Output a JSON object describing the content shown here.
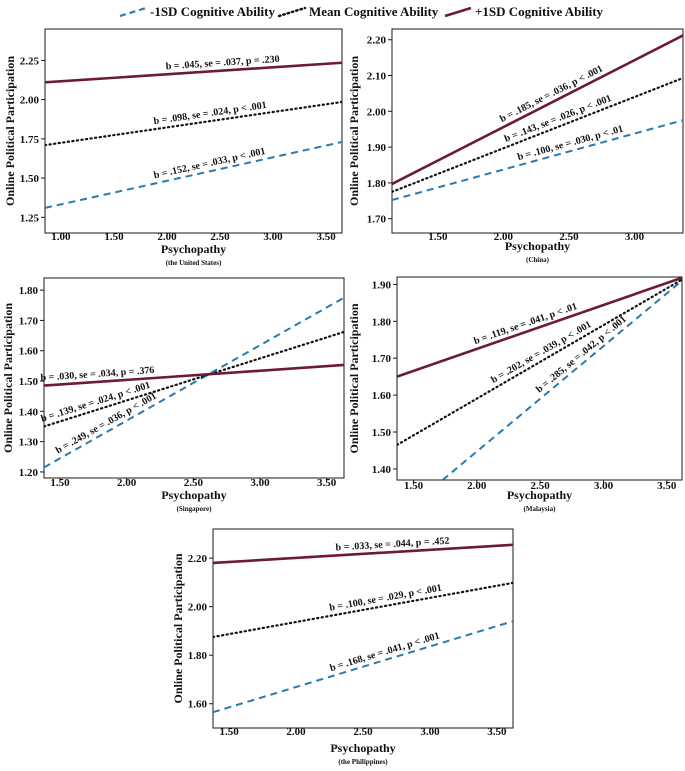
{
  "legend": [
    {
      "label": "-1SD Cognitive Ability",
      "style": "dashed",
      "color": "#2a7ab0"
    },
    {
      "label": "Mean Cognitive Ability",
      "style": "dotted",
      "color": "#111111"
    },
    {
      "label": "+1SD Cognitive Ability",
      "style": "solid",
      "color": "#6e1a33"
    }
  ],
  "chart_data": [
    {
      "type": "line",
      "country": "(the United States)",
      "xlabel": "Psychopathy",
      "ylabel": "Online  Political  Participation",
      "xlim": [
        0.85,
        3.65
      ],
      "ylim": [
        1.15,
        2.45
      ],
      "xticks": [
        1.0,
        1.5,
        2.0,
        2.5,
        3.0,
        3.5
      ],
      "xtick_labels": [
        "1.00",
        "1.50",
        "2.00",
        "2.50",
        "3.00",
        "3.50"
      ],
      "yticks": [
        1.25,
        1.5,
        1.75,
        2.0,
        2.25
      ],
      "ytick_labels": [
        "1.25",
        "1.50",
        "1.75",
        "2.00",
        "2.25"
      ],
      "series": [
        {
          "name": "-1SD Cognitive Ability",
          "x": [
            0.85,
            3.65
          ],
          "y": [
            1.31,
            1.73
          ],
          "annotation": "b = .152, se = .033, p < .001"
        },
        {
          "name": "Mean Cognitive Ability",
          "x": [
            0.85,
            3.65
          ],
          "y": [
            1.71,
            1.985
          ],
          "annotation": "b = .098, se = .024, p < .001"
        },
        {
          "name": "+1SD Cognitive Ability",
          "x": [
            0.85,
            3.65
          ],
          "y": [
            2.11,
            2.235
          ],
          "annotation": "b = .045, se = .037, p = .230"
        }
      ]
    },
    {
      "type": "line",
      "country": "(China)",
      "xlabel": "Psychopathy",
      "ylabel": "Online  Political  Participation",
      "xlim": [
        1.15,
        3.37
      ],
      "ylim": [
        1.66,
        2.23
      ],
      "xticks": [
        1.5,
        2.0,
        2.5,
        3.0
      ],
      "xtick_labels": [
        "1.50",
        "2.00",
        "2.50",
        "3.00"
      ],
      "yticks": [
        1.7,
        1.8,
        1.9,
        2.0,
        2.1,
        2.2
      ],
      "ytick_labels": [
        "1.70",
        "1.80",
        "1.90",
        "2.00",
        "2.10",
        "2.20"
      ],
      "series": [
        {
          "name": "-1SD Cognitive Ability",
          "x": [
            1.15,
            3.37
          ],
          "y": [
            1.752,
            1.975
          ],
          "annotation": "b = .100, se = .030, p < .01"
        },
        {
          "name": "Mean Cognitive Ability",
          "x": [
            1.15,
            3.37
          ],
          "y": [
            1.775,
            2.093
          ],
          "annotation": "b = .143, se = .026, p < .001"
        },
        {
          "name": "+1SD Cognitive Ability",
          "x": [
            1.15,
            3.37
          ],
          "y": [
            1.797,
            2.212
          ],
          "annotation": "b = .185, se = .036, p < .001"
        }
      ]
    },
    {
      "type": "line",
      "country": "(Singapore)",
      "xlabel": "Psychopathy",
      "ylabel": "Online  Political  Participation",
      "xlim": [
        1.38,
        3.63
      ],
      "ylim": [
        1.18,
        1.84
      ],
      "xticks": [
        1.5,
        2.0,
        2.5,
        3.0,
        3.5
      ],
      "xtick_labels": [
        "1.50",
        "2.00",
        "2.50",
        "3.00",
        "3.50"
      ],
      "yticks": [
        1.2,
        1.3,
        1.4,
        1.5,
        1.6,
        1.7,
        1.8
      ],
      "ytick_labels": [
        "1.20",
        "1.30",
        "1.40",
        "1.50",
        "1.60",
        "1.70",
        "1.80"
      ],
      "series": [
        {
          "name": "-1SD Cognitive Ability",
          "x": [
            1.38,
            3.63
          ],
          "y": [
            1.215,
            1.775
          ],
          "annotation": "b = .249, se = .036, p < .001"
        },
        {
          "name": "Mean Cognitive Ability",
          "x": [
            1.38,
            3.63
          ],
          "y": [
            1.35,
            1.662
          ],
          "annotation": "b = .139, se = .024, p < .001"
        },
        {
          "name": "+1SD Cognitive Ability",
          "x": [
            1.38,
            3.63
          ],
          "y": [
            1.485,
            1.553
          ],
          "annotation": "b = .030, se = .034, p = .376"
        }
      ]
    },
    {
      "type": "line",
      "country": "(Malaysia)",
      "xlabel": "Psychopathy",
      "ylabel": "Online  Political  Participation",
      "xlim": [
        1.37,
        3.62
      ],
      "ylim": [
        1.37,
        1.92
      ],
      "xticks": [
        1.5,
        2.0,
        2.5,
        3.0,
        3.5
      ],
      "xtick_labels": [
        "1.50",
        "2.00",
        "2.50",
        "3.00",
        "3.50"
      ],
      "yticks": [
        1.4,
        1.5,
        1.6,
        1.7,
        1.8,
        1.9
      ],
      "ytick_labels": [
        "1.40",
        "1.50",
        "1.60",
        "1.70",
        "1.80",
        "1.90"
      ],
      "series": [
        {
          "name": "-1SD Cognitive Ability",
          "x": [
            1.73,
            3.62
          ],
          "y": [
            1.37,
            1.91
          ],
          "annotation": "b = .285, se = .042, p < .001"
        },
        {
          "name": "Mean Cognitive Ability",
          "x": [
            1.37,
            3.62
          ],
          "y": [
            1.465,
            1.913
          ],
          "annotation": "b = .202, se = .039, p < .001"
        },
        {
          "name": "+1SD Cognitive Ability",
          "x": [
            1.37,
            3.62
          ],
          "y": [
            1.65,
            1.918
          ],
          "annotation": "b = .119, se = .041, p < .01"
        }
      ]
    },
    {
      "type": "line",
      "country": "(the Philippines)",
      "xlabel": "Psychopathy",
      "ylabel": "Online  Political  Participation",
      "xlim": [
        1.38,
        3.62
      ],
      "ylim": [
        1.5,
        2.32
      ],
      "xticks": [
        1.5,
        2.0,
        2.5,
        3.0,
        3.5
      ],
      "xtick_labels": [
        "1.50",
        "2.00",
        "2.50",
        "3.00",
        "3.50"
      ],
      "yticks": [
        1.6,
        1.8,
        2.0,
        2.2
      ],
      "ytick_labels": [
        "1.60",
        "1.80",
        "2.00",
        "2.20"
      ],
      "series": [
        {
          "name": "-1SD Cognitive Ability",
          "x": [
            1.38,
            3.62
          ],
          "y": [
            1.565,
            1.94
          ],
          "annotation": "b = .168, se = .041, p < .001"
        },
        {
          "name": "Mean Cognitive Ability",
          "x": [
            1.38,
            3.62
          ],
          "y": [
            1.875,
            2.098
          ],
          "annotation": "b = .100, se = .029, p < .001"
        },
        {
          "name": "+1SD Cognitive Ability",
          "x": [
            1.38,
            3.62
          ],
          "y": [
            2.18,
            2.255
          ],
          "annotation": "b = .033, se = .044, p = .452"
        }
      ]
    }
  ]
}
